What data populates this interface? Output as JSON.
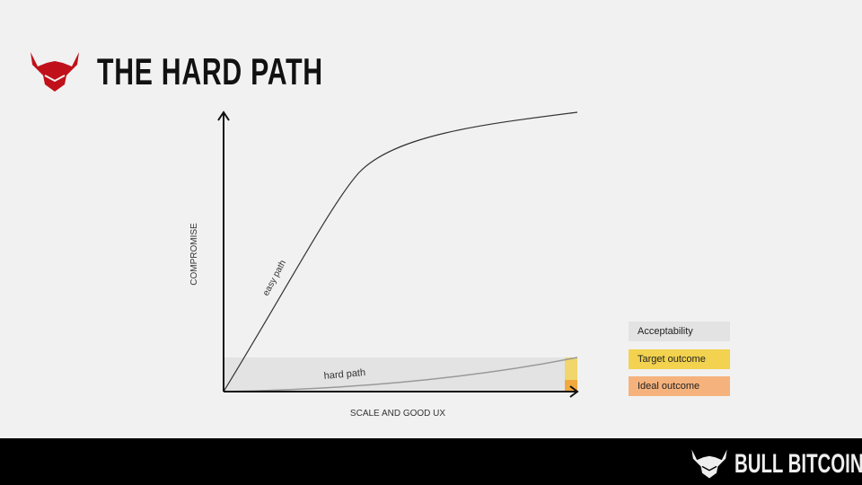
{
  "title": "THE HARD PATH",
  "diagram": {
    "y_axis_label": "COMPROMISE",
    "x_axis_label": "SCALE AND GOOD UX",
    "curves": [
      {
        "label": "easy path",
        "color": "#333333"
      },
      {
        "label": "hard path",
        "color": "#999999"
      }
    ],
    "legend": [
      {
        "label": "Acceptability",
        "color": "#e3e3e3"
      },
      {
        "label": "Target outcome",
        "color": "#f2d24e"
      },
      {
        "label": "Ideal outcome",
        "color": "#f5b27c"
      }
    ]
  },
  "footer": {
    "brand": "BULL BITCOIN",
    "background": "#000000"
  },
  "accent": "#c0111a"
}
